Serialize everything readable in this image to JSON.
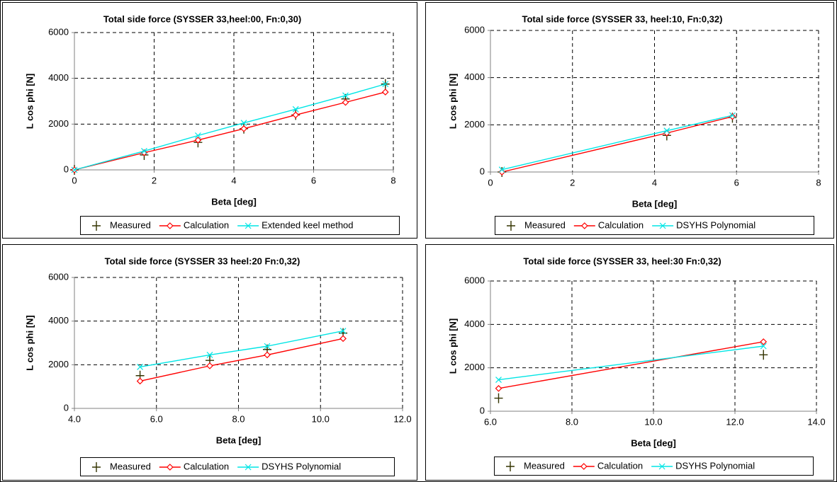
{
  "chart_data": [
    {
      "type": "line",
      "title": "Total side force (SYSSER 33,heel:00, Fn:0,30)",
      "x_label": "Beta [deg]",
      "y_label": "L cos phi [N]",
      "x": [
        0,
        1.75,
        3.1,
        4.25,
        5.55,
        6.8,
        7.8
      ],
      "series": [
        {
          "name": "Measured",
          "color": "#333300",
          "marker": "plus",
          "line": false,
          "values": [
            0,
            650,
            1200,
            1800,
            2400,
            3100,
            3750
          ]
        },
        {
          "name": "Calculation",
          "color": "#ff0000",
          "marker": "diamond",
          "line": true,
          "values": [
            0,
            750,
            1300,
            1800,
            2400,
            2950,
            3400
          ]
        },
        {
          "name": "Extended keel method",
          "color": "#00e5e5",
          "marker": "x",
          "line": true,
          "values": [
            0,
            820,
            1500,
            2050,
            2650,
            3250,
            3750
          ]
        }
      ],
      "xlim": [
        0,
        8
      ],
      "xticks": [
        0,
        2,
        4,
        6,
        8
      ],
      "ylim": [
        0,
        6000
      ],
      "yticks": [
        0,
        2000,
        4000,
        6000
      ],
      "grid": true
    },
    {
      "type": "line",
      "title": "Total side force (SYSSER 33, heel:10, Fn:0,32)",
      "x_label": "Beta [deg]",
      "y_label": "L cos phi [N]",
      "x": [
        0.28,
        4.3,
        5.9
      ],
      "series": [
        {
          "name": "Measured",
          "color": "#333300",
          "marker": "plus",
          "line": false,
          "values": [
            0,
            1550,
            2300
          ]
        },
        {
          "name": "Calculation",
          "color": "#ff0000",
          "marker": "diamond",
          "line": true,
          "values": [
            0,
            1650,
            2350
          ]
        },
        {
          "name": "DSYHS Polynomial",
          "color": "#00e5e5",
          "marker": "x",
          "line": true,
          "values": [
            100,
            1750,
            2400
          ]
        }
      ],
      "xlim": [
        0,
        8
      ],
      "xticks": [
        0,
        2,
        4,
        6,
        8
      ],
      "ylim": [
        0,
        6000
      ],
      "yticks": [
        0,
        2000,
        4000,
        6000
      ],
      "grid": true
    },
    {
      "type": "line",
      "title": "Total side force (SYSSER 33 heel:20 Fn:0,32)",
      "x_label": "Beta [deg]",
      "y_label": "L cos phi [N]",
      "x": [
        5.6,
        7.3,
        8.7,
        10.55
      ],
      "series": [
        {
          "name": "Measured",
          "color": "#333300",
          "marker": "plus",
          "line": false,
          "values": [
            1500,
            2200,
            2700,
            3450
          ]
        },
        {
          "name": "Calculation",
          "color": "#ff0000",
          "marker": "diamond",
          "line": true,
          "values": [
            1250,
            1950,
            2450,
            3200
          ]
        },
        {
          "name": "DSYHS Polynomial",
          "color": "#00e5e5",
          "marker": "x",
          "line": true,
          "values": [
            1900,
            2450,
            2850,
            3550
          ]
        }
      ],
      "xlim": [
        4,
        12
      ],
      "xticks": [
        {
          "value": 4,
          "label": "4.0"
        },
        {
          "value": 6,
          "label": "6.0"
        },
        {
          "value": 8,
          "label": "8.0"
        },
        {
          "value": 10,
          "label": "10.0"
        },
        {
          "value": 12,
          "label": "12.0"
        }
      ],
      "ylim": [
        0,
        6000
      ],
      "yticks": [
        0,
        2000,
        4000,
        6000
      ],
      "grid": true
    },
    {
      "type": "line",
      "title": "Total side force (SYSSER 33, heel:30 Fn:0,32)",
      "x_label": "Beta [deg]",
      "y_label": "L cos phi [N]",
      "x": [
        6.2,
        12.7
      ],
      "series": [
        {
          "name": "Measured",
          "color": "#333300",
          "marker": "plus",
          "line": false,
          "values": [
            600,
            2600
          ]
        },
        {
          "name": "Calculation",
          "color": "#ff0000",
          "marker": "diamond",
          "line": true,
          "values": [
            1050,
            3200
          ]
        },
        {
          "name": "DSYHS Polynomial",
          "color": "#00e5e5",
          "marker": "x",
          "line": true,
          "values": [
            1450,
            3000
          ]
        }
      ],
      "xlim": [
        6,
        14
      ],
      "xticks": [
        {
          "value": 6,
          "label": "6.0"
        },
        {
          "value": 8,
          "label": "8.0"
        },
        {
          "value": 10,
          "label": "10.0"
        },
        {
          "value": 12,
          "label": "12.0"
        },
        {
          "value": 14,
          "label": "14.0"
        }
      ],
      "ylim": [
        0,
        6000
      ],
      "yticks": [
        0,
        2000,
        4000,
        6000
      ],
      "grid": true
    }
  ]
}
